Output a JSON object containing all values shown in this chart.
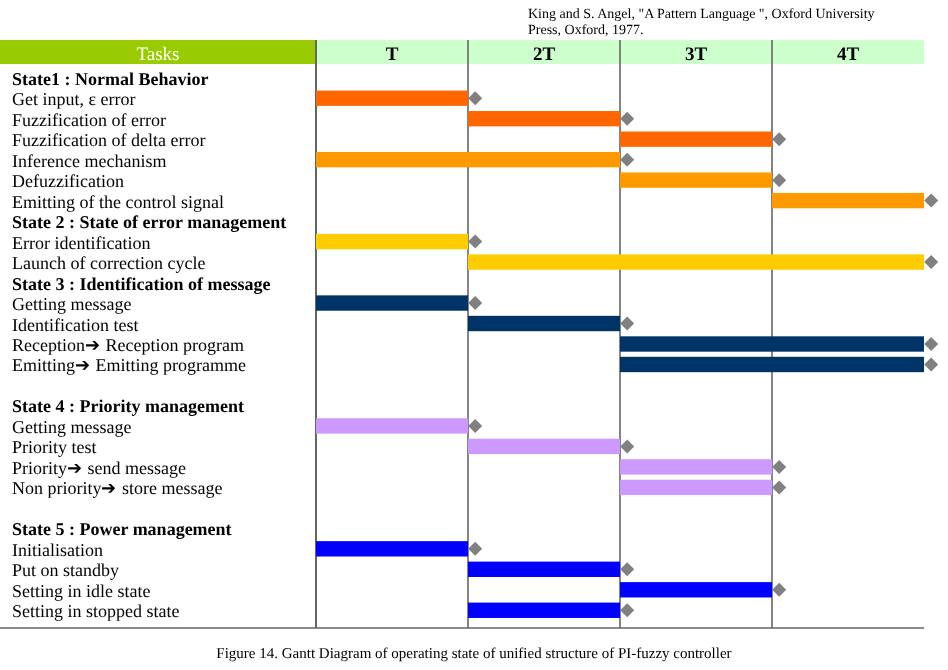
{
  "chart_data": {
    "type": "bar",
    "orientation": "horizontal",
    "ylabel": "Tasks",
    "categories": [
      "State1 : Normal Behavior",
      "Get input, ε error",
      "Fuzzification of error",
      "Fuzzification of delta error",
      "Inference mechanism",
      "Defuzzification",
      "Emitting of the control signal",
      "State 2 : State of error management",
      "Error identification",
      "Launch of correction cycle",
      "State 3 : Identification of message",
      "Getting message",
      "Identification test",
      "Reception➔ Reception program",
      "Emitting➔ Emitting programme",
      null,
      "State 4 : Priority management",
      "Getting message",
      "Priority test",
      "Priority➔ send message",
      "Non priority➔ store  message",
      null,
      "State 5 : Power management",
      "Initialisation",
      "Put on standby",
      "Setting in idle state",
      "Setting in stopped state"
    ],
    "base": [
      null,
      0,
      1,
      2,
      0,
      2,
      3,
      null,
      0,
      1,
      null,
      0,
      1,
      2,
      2,
      null,
      null,
      0,
      1,
      2,
      2,
      null,
      null,
      0,
      1,
      2,
      1
    ],
    "values": [
      null,
      1,
      1,
      1,
      2,
      1,
      1,
      null,
      1,
      3,
      null,
      1,
      1,
      2,
      2,
      null,
      null,
      1,
      1,
      1,
      1,
      null,
      null,
      1,
      1,
      1,
      1
    ],
    "colors": [
      null,
      "#ff6600",
      "#ff6600",
      "#ff6600",
      "#ff9900",
      "#ff9900",
      "#ff9900",
      null,
      "#ffcc00",
      "#ffcc00",
      null,
      "#003366",
      "#003366",
      "#003366",
      "#003366",
      null,
      null,
      "#cc99ff",
      "#cc99ff",
      "#cc99ff",
      "#cc99ff",
      null,
      null,
      "#0000ff",
      "#0000ff",
      "#0000ff",
      "#0000ff"
    ],
    "xlim": [
      0,
      4
    ],
    "xticks": [
      {
        "value": 0.5,
        "label": "T"
      },
      {
        "value": 1.5,
        "label": "2T"
      },
      {
        "value": 2.5,
        "label": "3T"
      },
      {
        "value": 3.5,
        "label": "4T"
      }
    ],
    "marker": "diamond",
    "annotations": [
      "King and S. Angel, \"A Pattern Language \", Oxford University Press, Oxford, 1977.",
      "Figure 14. Gantt Diagram of operating state of unified structure of PI-fuzzy controller"
    ]
  }
}
